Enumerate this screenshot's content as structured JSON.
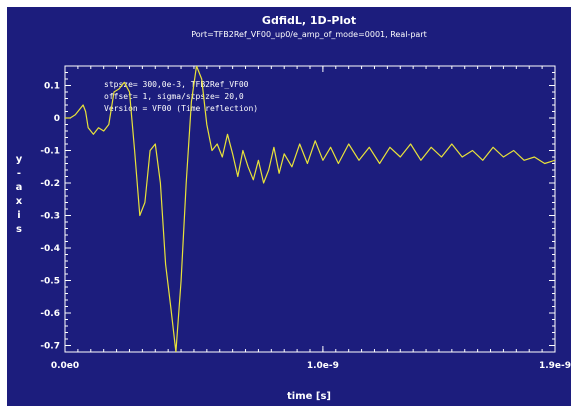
{
  "chart_data": {
    "type": "line",
    "title": "GdfidL, 1D-Plot",
    "subtitle": "Port=TFB2Ref_VF00_up0/e_amp_of_mode=0001, Real-part",
    "xlabel": "time [s]",
    "ylabel": "y-axis",
    "xlim": [
      0,
      1.9e-09
    ],
    "ylim": [
      -0.72,
      0.16
    ],
    "x_ticks": [
      "0.0e0",
      "1.0e-9",
      "1.9e-9"
    ],
    "y_ticks": [
      "0.1",
      "0",
      "-0.1",
      "-0.2",
      "-0.3",
      "-0.4",
      "-0.5",
      "-0.6",
      "-0.7"
    ],
    "annotations": [
      "stpsze= 300,0e-3, TFB2Ref_VF00",
      "offset= 1, sigma/stpsze= 20,0",
      "Version = VF00 (Time reflection)"
    ],
    "colors": {
      "background": "#1c1d7d",
      "line": "#e8e23a",
      "text": "#ffffff"
    },
    "series": [
      {
        "values": [
          [
            0,
            0.0
          ],
          [
            2e-11,
            0.0
          ],
          [
            4e-11,
            0.01
          ],
          [
            6e-11,
            0.03
          ],
          [
            7e-11,
            0.04
          ],
          [
            8e-11,
            0.02
          ],
          [
            9e-11,
            -0.03
          ],
          [
            1.1e-10,
            -0.05
          ],
          [
            1.3e-10,
            -0.03
          ],
          [
            1.5e-10,
            -0.04
          ],
          [
            1.7e-10,
            -0.02
          ],
          [
            1.9e-10,
            0.08
          ],
          [
            2.1e-10,
            0.09
          ],
          [
            2.3e-10,
            0.11
          ],
          [
            2.5e-10,
            0.08
          ],
          [
            2.7e-10,
            -0.1
          ],
          [
            2.9e-10,
            -0.3
          ],
          [
            3.1e-10,
            -0.26
          ],
          [
            3.3e-10,
            -0.1
          ],
          [
            3.5e-10,
            -0.08
          ],
          [
            3.7e-10,
            -0.2
          ],
          [
            3.9e-10,
            -0.45
          ],
          [
            4.1e-10,
            -0.58
          ],
          [
            4.3e-10,
            -0.72
          ],
          [
            4.5e-10,
            -0.5
          ],
          [
            4.7e-10,
            -0.2
          ],
          [
            4.9e-10,
            0.05
          ],
          [
            5.1e-10,
            0.16
          ],
          [
            5.3e-10,
            0.12
          ],
          [
            5.5e-10,
            -0.02
          ],
          [
            5.7e-10,
            -0.1
          ],
          [
            5.9e-10,
            -0.08
          ],
          [
            6.1e-10,
            -0.12
          ],
          [
            6.3e-10,
            -0.05
          ],
          [
            6.5e-10,
            -0.11
          ],
          [
            6.7e-10,
            -0.18
          ],
          [
            6.9e-10,
            -0.1
          ],
          [
            7.1e-10,
            -0.15
          ],
          [
            7.3e-10,
            -0.19
          ],
          [
            7.5e-10,
            -0.13
          ],
          [
            7.7e-10,
            -0.2
          ],
          [
            7.9e-10,
            -0.16
          ],
          [
            8.1e-10,
            -0.09
          ],
          [
            8.3e-10,
            -0.17
          ],
          [
            8.5e-10,
            -0.11
          ],
          [
            8.8e-10,
            -0.15
          ],
          [
            9.1e-10,
            -0.08
          ],
          [
            9.4e-10,
            -0.14
          ],
          [
            9.7e-10,
            -0.07
          ],
          [
            1e-09,
            -0.13
          ],
          [
            1.03e-09,
            -0.09
          ],
          [
            1.06e-09,
            -0.14
          ],
          [
            1.1e-09,
            -0.08
          ],
          [
            1.14e-09,
            -0.13
          ],
          [
            1.18e-09,
            -0.09
          ],
          [
            1.22e-09,
            -0.14
          ],
          [
            1.26e-09,
            -0.09
          ],
          [
            1.3e-09,
            -0.12
          ],
          [
            1.34e-09,
            -0.08
          ],
          [
            1.38e-09,
            -0.13
          ],
          [
            1.42e-09,
            -0.09
          ],
          [
            1.46e-09,
            -0.12
          ],
          [
            1.5e-09,
            -0.08
          ],
          [
            1.54e-09,
            -0.12
          ],
          [
            1.58e-09,
            -0.1
          ],
          [
            1.62e-09,
            -0.13
          ],
          [
            1.66e-09,
            -0.09
          ],
          [
            1.7e-09,
            -0.12
          ],
          [
            1.74e-09,
            -0.1
          ],
          [
            1.78e-09,
            -0.13
          ],
          [
            1.82e-09,
            -0.12
          ],
          [
            1.86e-09,
            -0.14
          ],
          [
            1.9e-09,
            -0.13
          ]
        ]
      }
    ]
  }
}
